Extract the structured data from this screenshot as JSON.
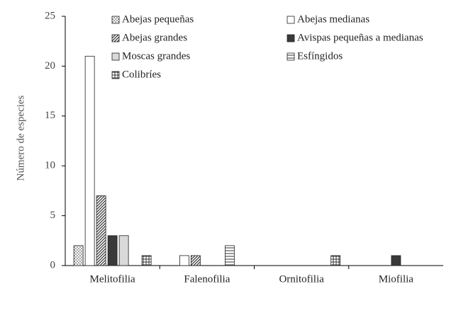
{
  "chart_data": {
    "type": "bar",
    "y_label": "Número de especies",
    "categories": [
      "Melitofilia",
      "Falenofilia",
      "Ornitofilia",
      "Miofilia"
    ],
    "series": [
      {
        "name": "Abejas pequeñas",
        "color": "#ffffff",
        "pattern": "dots",
        "values": [
          2,
          0,
          0,
          0
        ]
      },
      {
        "name": "Abejas medianas",
        "color": "#ffffff",
        "pattern": "none",
        "values": [
          21,
          1,
          0,
          0
        ]
      },
      {
        "name": "Abejas grandes",
        "color": "#ffffff",
        "pattern": "diagonal",
        "values": [
          7,
          1,
          0,
          0
        ]
      },
      {
        "name": "Avispas pequeñas a medianas",
        "color": "#3a3a3a",
        "pattern": "none",
        "values": [
          3,
          0,
          0,
          1
        ]
      },
      {
        "name": "Moscas grandes",
        "color": "#d9d9d9",
        "pattern": "none",
        "values": [
          3,
          0,
          0,
          0
        ]
      },
      {
        "name": "Esfíngidos",
        "color": "#ffffff",
        "pattern": "horizontal",
        "values": [
          0,
          2,
          0,
          0
        ]
      },
      {
        "name": "Colibríes",
        "color": "#ffffff",
        "pattern": "grid",
        "values": [
          1,
          0,
          1,
          0
        ]
      }
    ],
    "ylim": [
      0,
      25
    ],
    "yticks": [
      0,
      5,
      10,
      15,
      20,
      25
    ],
    "grid": false
  }
}
